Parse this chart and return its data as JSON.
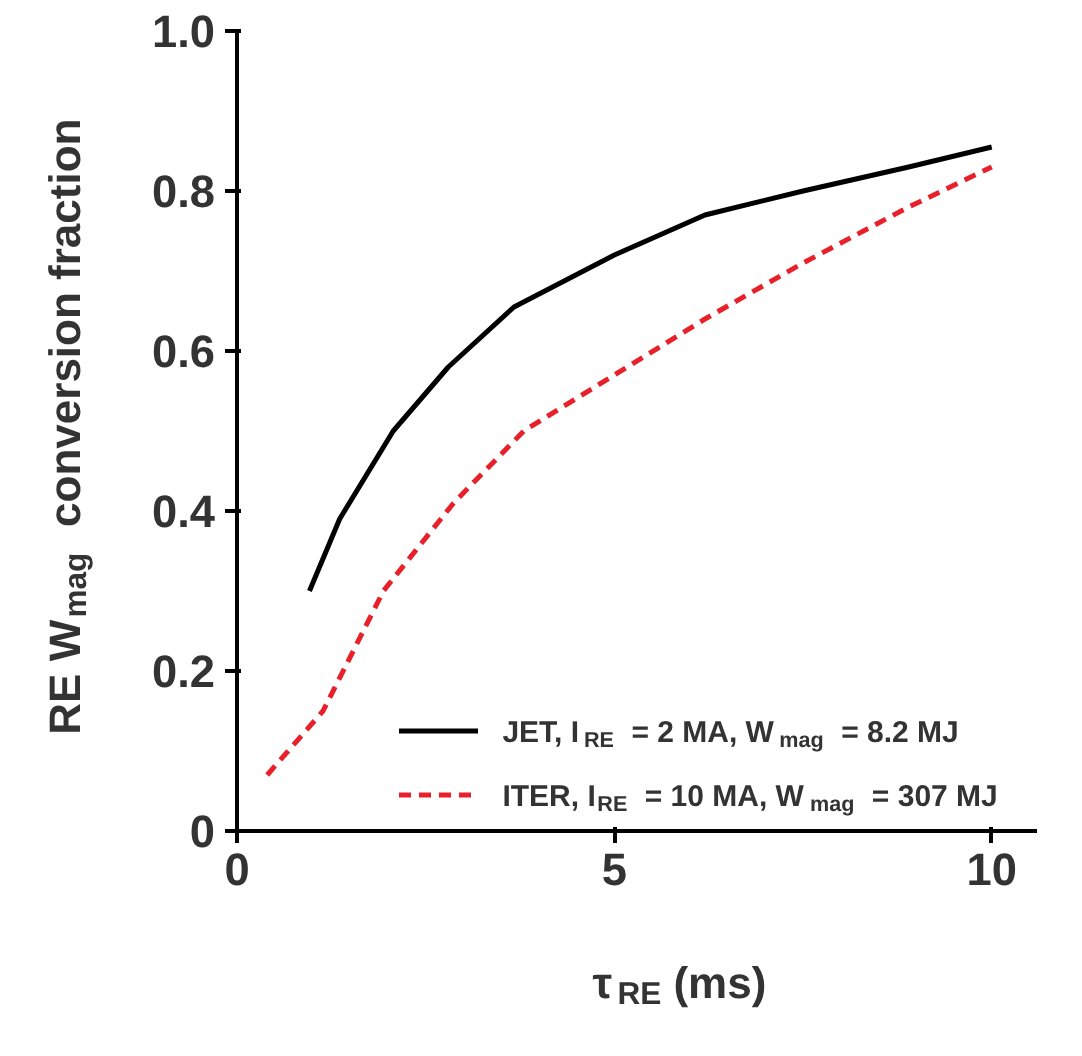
{
  "chart_data": {
    "type": "line",
    "xlabel": "τ$_{RE}$ (ms)",
    "ylabel": "RE W$_{mag}$ conversion fraction",
    "xlim": [
      0,
      10.6
    ],
    "ylim": [
      0,
      1.0
    ],
    "xticks": [
      0,
      5,
      10
    ],
    "yticks": [
      0,
      0.2,
      0.4,
      0.6,
      0.8,
      {
        "value": 1.0,
        "label": "1.0"
      }
    ],
    "grid": false,
    "legend": "bottom right",
    "series": [
      {
        "name": "JET, I$_{RE}$ = 2 MA, W$_{mag}$ = 8.2 MJ",
        "color": "#000000",
        "line_style": "solid",
        "x": [
          0.96,
          1.36,
          2.07,
          2.8,
          3.67,
          5,
          6.2,
          7.5,
          8.9,
          10
        ],
        "values": [
          0.3,
          0.39,
          0.5,
          0.58,
          0.655,
          0.72,
          0.77,
          0.8,
          0.83,
          0.855
        ]
      },
      {
        "name": "ITER, I$_{RE}$ = 10 MA, W$_{mag}$ = 307 MJ",
        "color": "#e8202a",
        "line_style": "dashed",
        "x": [
          0.4,
          1.14,
          1.94,
          2.87,
          3.8,
          5,
          6.2,
          7.5,
          8.9,
          10
        ],
        "values": [
          0.07,
          0.15,
          0.3,
          0.41,
          0.5,
          0.57,
          0.64,
          0.71,
          0.78,
          0.83
        ]
      }
    ]
  }
}
